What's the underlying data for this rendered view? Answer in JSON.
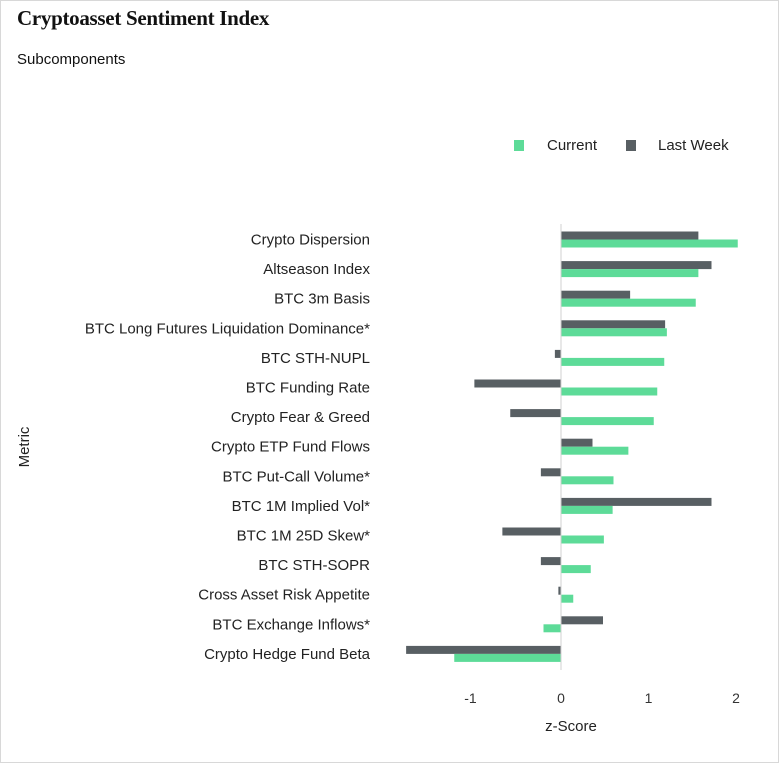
{
  "header": {
    "title": "Cryptoasset Sentiment Index",
    "subtitle": "Subcomponents"
  },
  "colors": {
    "current": "#5ddb98",
    "last_week": "#585f63",
    "zero_line": "#d0d0d0"
  },
  "chart_data": {
    "type": "bar",
    "orientation": "horizontal",
    "title": "",
    "xlabel": "z-Score",
    "ylabel": "Metric",
    "xlim": [
      -2.0,
      2.2
    ],
    "xticks": [
      -1,
      0,
      1,
      2
    ],
    "grid": false,
    "legend_position": "top-right",
    "categories": [
      "Crypto Dispersion",
      "Altseason Index",
      "BTC 3m Basis",
      "BTC Long Futures Liquidation Dominance*",
      "BTC STH-NUPL",
      "BTC Funding Rate",
      "Crypto Fear & Greed",
      "Crypto ETP Fund Flows",
      "BTC Put-Call Volume*",
      "BTC 1M Implied Vol*",
      "BTC 1M 25D Skew*",
      "BTC STH-SOPR",
      "Cross Asset Risk Appetite",
      "BTC Exchange Inflows*",
      "Crypto Hedge Fund Beta"
    ],
    "series": [
      {
        "name": "Current",
        "values": [
          2.02,
          1.57,
          1.54,
          1.21,
          1.18,
          1.1,
          1.06,
          0.77,
          0.6,
          0.59,
          0.49,
          0.34,
          0.14,
          -0.2,
          -1.22
        ]
      },
      {
        "name": "Last Week",
        "values": [
          1.57,
          1.72,
          0.79,
          1.19,
          -0.07,
          -0.99,
          -0.58,
          0.36,
          -0.23,
          1.72,
          -0.67,
          -0.23,
          -0.03,
          0.48,
          -1.77
        ]
      }
    ]
  }
}
